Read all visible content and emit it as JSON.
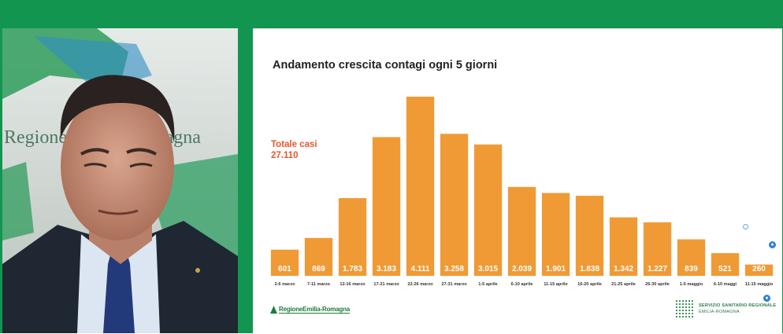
{
  "chart_data": {
    "type": "bar",
    "title": "Andamento crescita contagi ogni 5 giorni",
    "categories": [
      "2-6 marzo",
      "7-11 marzo",
      "12-16 marzo",
      "17-21 marzo",
      "22-26 marzo",
      "27-31 marzo",
      "1-5 aprile",
      "6-10 aprile",
      "11-15 aprile",
      "16-20 aprile",
      "21-25 aprile",
      "26-30 aprile",
      "1-5 maggio",
      "6-10 maggi",
      "11-15 maggio"
    ],
    "values": [
      601,
      869,
      1783,
      3183,
      4111,
      3258,
      3015,
      2039,
      1901,
      1838,
      1342,
      1227,
      839,
      521,
      260
    ],
    "value_labels": [
      "601",
      "869",
      "1.783",
      "3.183",
      "4.111",
      "3.258",
      "3.015",
      "2.039",
      "1.901",
      "1.838",
      "1.342",
      "1.227",
      "839",
      "521",
      "260"
    ],
    "ylim": [
      0,
      4111
    ],
    "bar_color": "#f09a35",
    "value_label_color": "#ffffff",
    "xlabel": "",
    "ylabel": "",
    "grid": false,
    "legend": "none"
  },
  "total": {
    "label": "Totale casi",
    "value": "27.110",
    "color": "#e8562a"
  },
  "logos": {
    "regione": "RegioneEmilia-Romagna",
    "servizio_line1": "SERVIZIO SANITARIO REGIONALE",
    "servizio_line2": "EMILIA-ROMAGNA"
  },
  "video": {
    "backdrop_text": "Regione Emilia-Romagna"
  },
  "colors": {
    "frame_green": "#12964f"
  }
}
